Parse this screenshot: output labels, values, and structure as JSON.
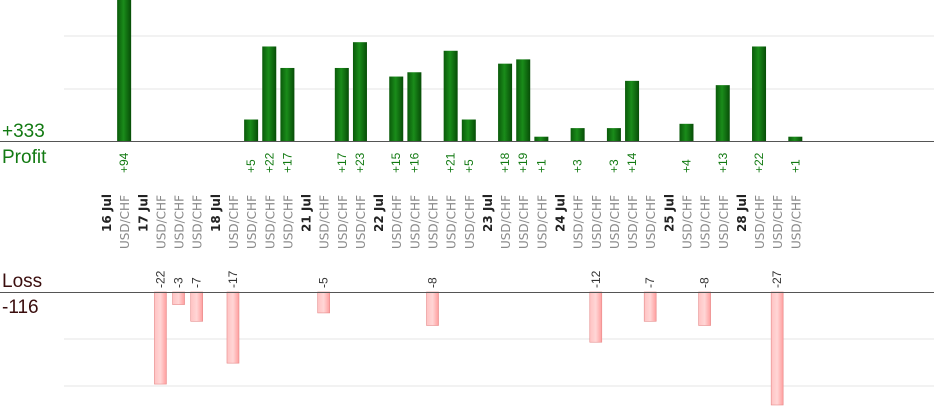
{
  "summary": {
    "profit_total": "+333",
    "profit_label": "Profit",
    "loss_label": "Loss",
    "loss_total": "-116"
  },
  "colors": {
    "profit": "#0b6b0b",
    "loss": "#ffb0b0",
    "profit_text": "#127a12"
  },
  "chart_data": {
    "type": "bar",
    "title": "",
    "xlabel": "",
    "ylabel": "",
    "grid": true,
    "profit_ylim": [
      0,
      27
    ],
    "loss_ylim": [
      -27,
      0
    ],
    "columns": [
      {
        "kind": "date",
        "label": "16 Jul"
      },
      {
        "kind": "trade",
        "symbol": "USD/CHF",
        "value": 94
      },
      {
        "kind": "date",
        "label": "17 Jul"
      },
      {
        "kind": "trade",
        "symbol": "USD/CHF",
        "value": -22
      },
      {
        "kind": "trade",
        "symbol": "USD/CHF",
        "value": -3
      },
      {
        "kind": "trade",
        "symbol": "USD/CHF",
        "value": -7
      },
      {
        "kind": "date",
        "label": "18 Jul"
      },
      {
        "kind": "trade",
        "symbol": "USD/CHF",
        "value": -17
      },
      {
        "kind": "trade",
        "symbol": "USD/CHF",
        "value": 5
      },
      {
        "kind": "trade",
        "symbol": "USD/CHF",
        "value": 22
      },
      {
        "kind": "trade",
        "symbol": "USD/CHF",
        "value": 17
      },
      {
        "kind": "date",
        "label": "21 Jul"
      },
      {
        "kind": "trade",
        "symbol": "USD/CHF",
        "value": -5
      },
      {
        "kind": "trade",
        "symbol": "USD/CHF",
        "value": 17
      },
      {
        "kind": "trade",
        "symbol": "USD/CHF",
        "value": 23
      },
      {
        "kind": "date",
        "label": "22 Jul"
      },
      {
        "kind": "trade",
        "symbol": "USD/CHF",
        "value": 15
      },
      {
        "kind": "trade",
        "symbol": "USD/CHF",
        "value": 16
      },
      {
        "kind": "trade",
        "symbol": "USD/CHF",
        "value": -8
      },
      {
        "kind": "trade",
        "symbol": "USD/CHF",
        "value": 21
      },
      {
        "kind": "trade",
        "symbol": "USD/CHF",
        "value": 5
      },
      {
        "kind": "date",
        "label": "23 Jul"
      },
      {
        "kind": "trade",
        "symbol": "USD/CHF",
        "value": 18
      },
      {
        "kind": "trade",
        "symbol": "USD/CHF",
        "value": 19
      },
      {
        "kind": "trade",
        "symbol": "USD/CHF",
        "value": 1
      },
      {
        "kind": "date",
        "label": "24 Jul"
      },
      {
        "kind": "trade",
        "symbol": "USD/CHF",
        "value": 3
      },
      {
        "kind": "trade",
        "symbol": "USD/CHF",
        "value": -12
      },
      {
        "kind": "trade",
        "symbol": "USD/CHF",
        "value": 3
      },
      {
        "kind": "trade",
        "symbol": "USD/CHF",
        "value": 14
      },
      {
        "kind": "trade",
        "symbol": "USD/CHF",
        "value": -7
      },
      {
        "kind": "date",
        "label": "25 Jul"
      },
      {
        "kind": "trade",
        "symbol": "USD/CHF",
        "value": 4
      },
      {
        "kind": "trade",
        "symbol": "USD/CHF",
        "value": -8
      },
      {
        "kind": "trade",
        "symbol": "USD/CHF",
        "value": 13
      },
      {
        "kind": "date",
        "label": "28 Jul"
      },
      {
        "kind": "trade",
        "symbol": "USD/CHF",
        "value": 22
      },
      {
        "kind": "trade",
        "symbol": "USD/CHF",
        "value": -27
      },
      {
        "kind": "trade",
        "symbol": "USD/CHF",
        "value": 1
      }
    ]
  }
}
